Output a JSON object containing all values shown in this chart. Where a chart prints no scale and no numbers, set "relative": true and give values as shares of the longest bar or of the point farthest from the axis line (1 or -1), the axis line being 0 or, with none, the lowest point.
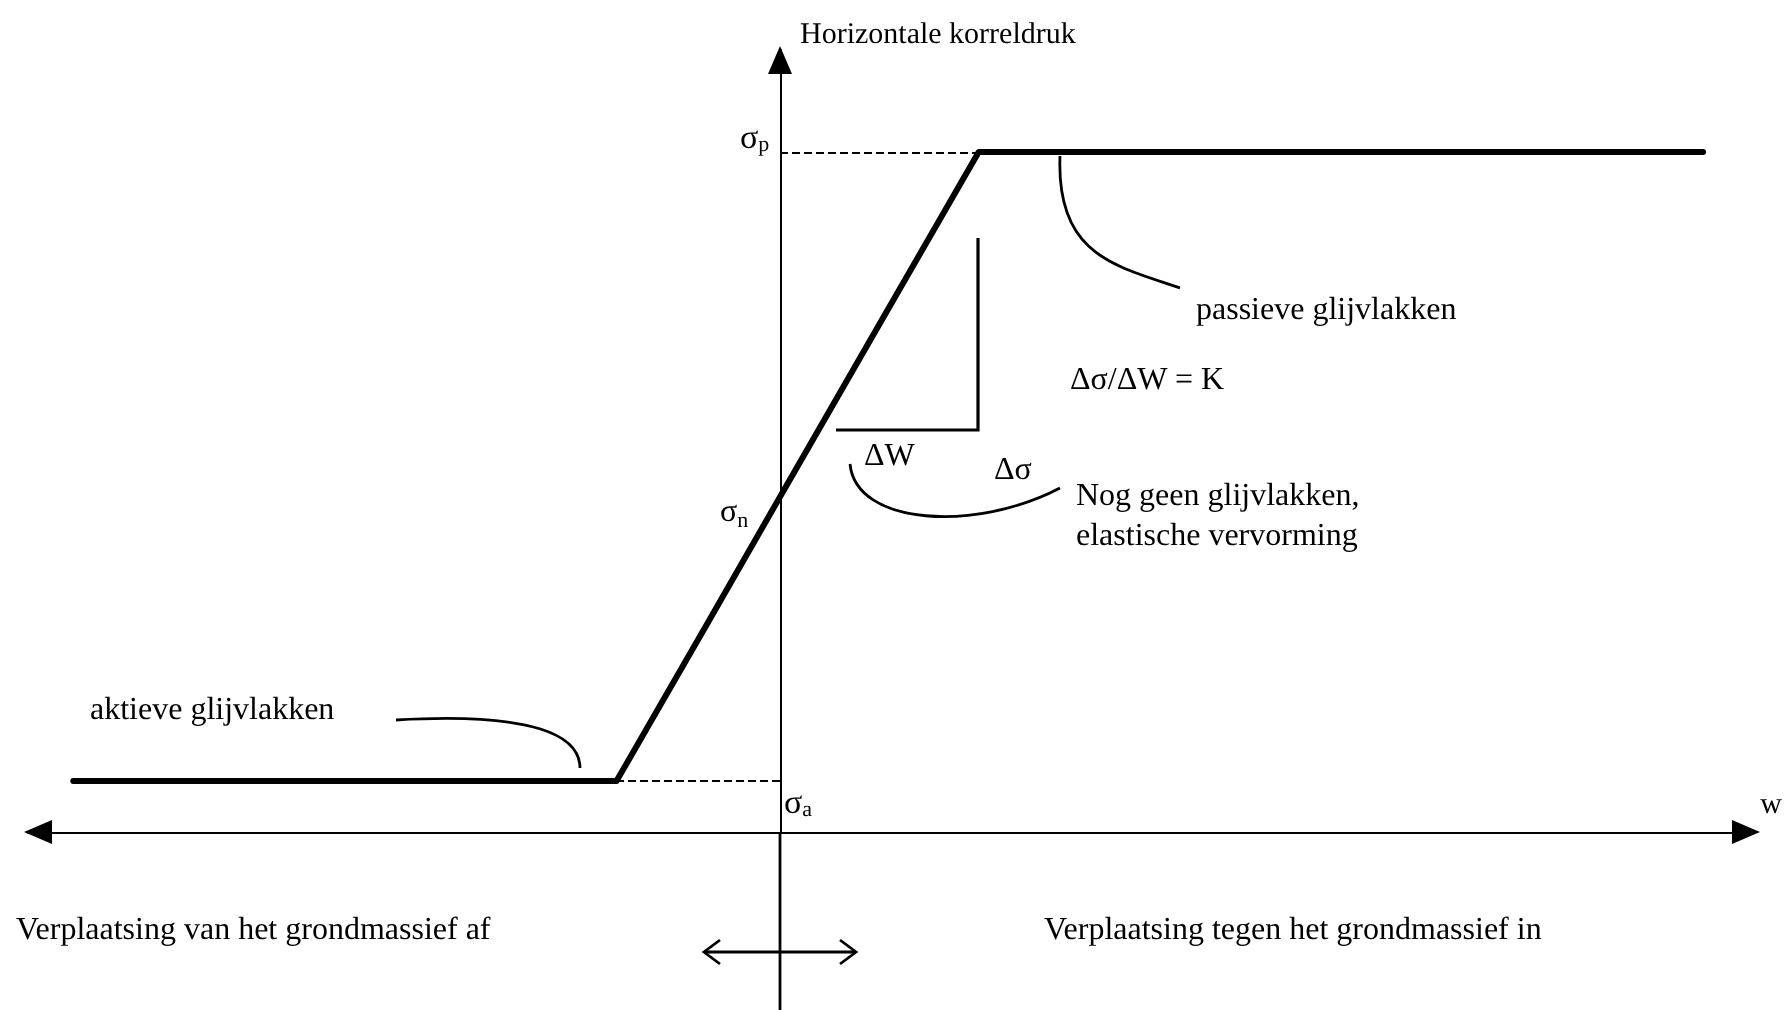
{
  "chart_data": {
    "type": "line",
    "relative": true,
    "ylabel": "Horizontale korreldruk",
    "xlabel": "w",
    "categories": [
      null,
      null,
      null,
      null,
      null,
      null,
      null,
      null,
      null,
      null,
      null,
      null,
      null,
      null,
      null,
      null,
      null,
      null,
      null
    ],
    "series": [
      {
        "color": "#000000",
        "values": [
          0.075,
          0.075,
          0.075,
          0.075,
          0.075,
          0.075,
          0.075,
          0.306,
          0.538,
          0.769,
          1,
          1,
          1,
          1,
          1,
          1,
          1,
          1,
          1
        ]
      }
    ],
    "marker": "none",
    "line_style": "solid",
    "ref_lines": [
      {
        "axis": "y",
        "value": 1,
        "label": "σ$_{p}$",
        "line_style": "dashed"
      },
      {
        "axis": "y",
        "value": 0.075,
        "label": "σ$_{a}$",
        "line_style": "dashed"
      }
    ],
    "annotations": [
      "σ$_{n}$",
      "aktieve glijvlakken",
      "Nog geen glijvlakken, elastische vervorming",
      "passieve glijvlakken",
      "Δσ",
      "ΔW",
      "Δσ/ΔW = K",
      "Verplaatsing van het grondmassief af",
      "Verplaatsing tegen het grondmassief in"
    ]
  }
}
